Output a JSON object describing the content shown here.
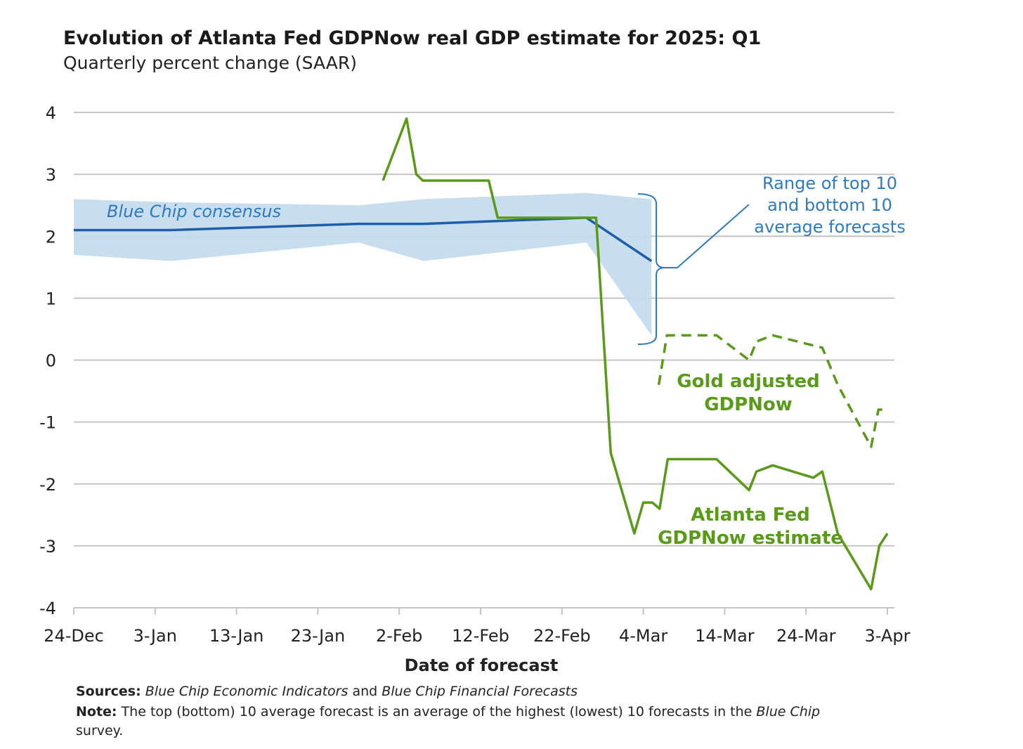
{
  "chart_data": {
    "type": "line",
    "title": "Evolution of Atlanta Fed GDPNow real GDP estimate for 2025: Q1",
    "subtitle": "Quarterly percent change (SAAR)",
    "xlabel": "Date of forecast",
    "ylabel": "",
    "x_units": "days since 24-Dec",
    "xlim": [
      0,
      100
    ],
    "ylim": [
      -4,
      4
    ],
    "yticks": [
      4,
      3,
      2,
      1,
      0,
      -1,
      -2,
      -3,
      -4
    ],
    "xticks": [
      {
        "x": 0,
        "label": "24-Dec"
      },
      {
        "x": 10,
        "label": "3-Jan"
      },
      {
        "x": 20,
        "label": "13-Jan"
      },
      {
        "x": 30,
        "label": "23-Jan"
      },
      {
        "x": 40,
        "label": "2-Feb"
      },
      {
        "x": 50,
        "label": "12-Feb"
      },
      {
        "x": 60,
        "label": "22-Feb"
      },
      {
        "x": 70,
        "label": "4-Mar"
      },
      {
        "x": 80,
        "label": "14-Mar"
      },
      {
        "x": 90,
        "label": "24-Mar"
      },
      {
        "x": 100,
        "label": "3-Apr"
      }
    ],
    "grid": true,
    "series": [
      {
        "name": "Blue Chip consensus",
        "color": "#1f5fa8",
        "x": [
          0,
          12,
          35,
          43,
          63,
          71
        ],
        "y": [
          2.1,
          2.1,
          2.2,
          2.2,
          2.3,
          1.6
        ]
      },
      {
        "name": "Range of top 10 and bottom 10 average forecasts",
        "type": "band",
        "color": "#c5dbec",
        "x": [
          0,
          12,
          35,
          43,
          63,
          71
        ],
        "upper": [
          2.6,
          2.55,
          2.5,
          2.6,
          2.7,
          2.6
        ],
        "lower": [
          1.7,
          1.6,
          1.9,
          1.6,
          1.9,
          0.4
        ]
      },
      {
        "name": "Atlanta Fed GDPNow estimate",
        "color": "#5a9a1a",
        "x": [
          38,
          40.9,
          42.1,
          42.9,
          51,
          52.1,
          63.7,
          64.2,
          66,
          68.9,
          70,
          71.1,
          72,
          73,
          79,
          83,
          83.9,
          85.9,
          90.9,
          92,
          93.9,
          98,
          99,
          100
        ],
        "y": [
          2.9,
          3.9,
          3.0,
          2.9,
          2.9,
          2.3,
          2.3,
          2.3,
          -1.5,
          -2.8,
          -2.3,
          -2.3,
          -2.4,
          -1.6,
          -1.6,
          -2.1,
          -1.8,
          -1.7,
          -1.9,
          -1.8,
          -2.8,
          -3.7,
          -3.0,
          -2.8
        ]
      },
      {
        "name": "Gold adjusted GDPNow",
        "color": "#5a9a1a",
        "dashed": true,
        "x": [
          71.9,
          72.9,
          79,
          83,
          83.9,
          85.9,
          92,
          93.9,
          98,
          98.9,
          99.5
        ],
        "y": [
          -0.4,
          0.4,
          0.4,
          0.0,
          0.3,
          0.4,
          0.2,
          -0.4,
          -1.4,
          -0.8,
          -0.8
        ]
      }
    ],
    "annotations": {
      "blue_chip": "Blue Chip consensus",
      "range": [
        "Range of top 10",
        "and bottom 10",
        "average forecasts"
      ],
      "gold": [
        "Gold adjusted",
        "GDPNow"
      ],
      "gdpnow": [
        "Atlanta Fed",
        "GDPNow estimate"
      ]
    },
    "footer": {
      "sources_label": "Sources:",
      "sources_text_1": "Blue Chip Economic Indicators",
      "sources_and": " and ",
      "sources_text_2": "Blue Chip Financial Forecasts",
      "note_label": "Note:",
      "note_text": " The top (bottom) 10 average forecast is an average of the highest (lowest) 10 forecasts in the ",
      "note_italic": "Blue Chip",
      "note_end": "survey."
    }
  }
}
